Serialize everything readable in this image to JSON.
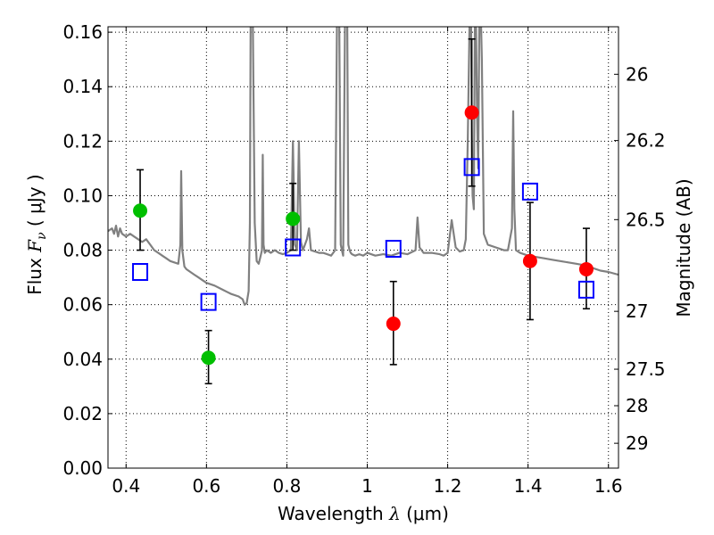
{
  "chart_data": {
    "type": "scatter",
    "title": "",
    "xlabel": {
      "prefix": "Wavelength",
      "symbol": "λ",
      "unit_open": "(",
      "unit": "μm",
      "unit_close": ")"
    },
    "ylabel": {
      "prefix": "Flux",
      "symbol": "F",
      "subscript": "ν",
      "unit_open": "(",
      "unit": "μJy",
      "unit_close": ")"
    },
    "y2label": "Magnitude (AB)",
    "xlim": [
      0.355,
      1.625
    ],
    "ylim": [
      0.0,
      0.162
    ],
    "grid": true,
    "xticks": [
      0.4,
      0.6,
      0.8,
      1.0,
      1.2,
      1.4,
      1.6
    ],
    "xtick_labels": [
      "0.4",
      "0.6",
      "0.8",
      "1",
      "1.2",
      "1.4",
      "1.6"
    ],
    "yticks": [
      0.0,
      0.02,
      0.04,
      0.06,
      0.08,
      0.1,
      0.12,
      0.14,
      0.16
    ],
    "ytick_labels": [
      "0.00",
      "0.02",
      "0.04",
      "0.06",
      "0.08",
      "0.10",
      "0.12",
      "0.14",
      "0.16"
    ],
    "y2ticks": [
      {
        "label": "26",
        "mag": 26.0
      },
      {
        "label": "26.2",
        "mag": 26.2
      },
      {
        "label": "26.5",
        "mag": 26.5
      },
      {
        "label": "27",
        "mag": 27.0
      },
      {
        "label": "27.5",
        "mag": 27.5
      },
      {
        "label": "28",
        "mag": 28.0
      },
      {
        "label": "29",
        "mag": 29.0
      }
    ],
    "series": [
      {
        "kind": "line",
        "color": "#808080",
        "x": [
          0.355,
          0.365,
          0.37,
          0.375,
          0.38,
          0.385,
          0.39,
          0.4,
          0.41,
          0.42,
          0.43,
          0.44,
          0.45,
          0.46,
          0.47,
          0.48,
          0.49,
          0.5,
          0.51,
          0.52,
          0.53,
          0.535,
          0.537,
          0.54,
          0.545,
          0.55,
          0.56,
          0.57,
          0.58,
          0.59,
          0.6,
          0.62,
          0.64,
          0.66,
          0.68,
          0.69,
          0.695,
          0.7,
          0.705,
          0.708,
          0.71,
          0.715,
          0.72,
          0.725,
          0.73,
          0.735,
          0.738,
          0.74,
          0.742,
          0.745,
          0.75,
          0.76,
          0.77,
          0.78,
          0.79,
          0.8,
          0.81,
          0.815,
          0.82,
          0.825,
          0.83,
          0.835,
          0.84,
          0.85,
          0.855,
          0.86,
          0.87,
          0.88,
          0.89,
          0.9,
          0.91,
          0.92,
          0.925,
          0.93,
          0.934,
          0.937,
          0.94,
          0.945,
          0.95,
          0.953,
          0.956,
          0.959,
          0.962,
          0.97,
          0.98,
          0.99,
          1.0,
          1.02,
          1.04,
          1.06,
          1.08,
          1.1,
          1.12,
          1.125,
          1.13,
          1.14,
          1.16,
          1.18,
          1.19,
          1.2,
          1.21,
          1.22,
          1.23,
          1.24,
          1.245,
          1.25,
          1.255,
          1.258,
          1.26,
          1.262,
          1.265,
          1.268,
          1.27,
          1.273,
          1.276,
          1.279,
          1.282,
          1.285,
          1.29,
          1.3,
          1.32,
          1.34,
          1.35,
          1.36,
          1.363,
          1.366,
          1.37,
          1.38,
          1.4,
          1.42,
          1.44,
          1.46,
          1.48,
          1.5,
          1.52,
          1.54,
          1.56,
          1.58,
          1.6,
          1.625
        ],
        "y": [
          0.087,
          0.088,
          0.086,
          0.089,
          0.085,
          0.088,
          0.086,
          0.085,
          0.086,
          0.085,
          0.084,
          0.083,
          0.084,
          0.082,
          0.08,
          0.079,
          0.078,
          0.077,
          0.076,
          0.0755,
          0.075,
          0.082,
          0.109,
          0.08,
          0.074,
          0.073,
          0.072,
          0.071,
          0.07,
          0.069,
          0.068,
          0.067,
          0.0655,
          0.064,
          0.063,
          0.062,
          0.06,
          0.0605,
          0.065,
          0.09,
          0.17,
          0.17,
          0.09,
          0.076,
          0.075,
          0.078,
          0.08,
          0.115,
          0.082,
          0.079,
          0.08,
          0.079,
          0.08,
          0.079,
          0.0785,
          0.079,
          0.08,
          0.12,
          0.082,
          0.08,
          0.12,
          0.083,
          0.08,
          0.084,
          0.088,
          0.08,
          0.0795,
          0.079,
          0.079,
          0.0785,
          0.078,
          0.08,
          0.17,
          0.17,
          0.082,
          0.08,
          0.078,
          0.17,
          0.17,
          0.082,
          0.08,
          0.079,
          0.0785,
          0.078,
          0.0785,
          0.078,
          0.079,
          0.078,
          0.0785,
          0.078,
          0.079,
          0.0785,
          0.08,
          0.092,
          0.081,
          0.079,
          0.079,
          0.0785,
          0.078,
          0.079,
          0.091,
          0.081,
          0.0795,
          0.08,
          0.084,
          0.12,
          0.17,
          0.17,
          0.125,
          0.1,
          0.095,
          0.17,
          0.17,
          0.13,
          0.11,
          0.17,
          0.17,
          0.15,
          0.086,
          0.082,
          0.081,
          0.08,
          0.08,
          0.088,
          0.131,
          0.095,
          0.08,
          0.079,
          0.078,
          0.0775,
          0.077,
          0.0765,
          0.076,
          0.0755,
          0.075,
          0.0745,
          0.0735,
          0.0725,
          0.072,
          0.071
        ]
      },
      {
        "kind": "points",
        "marker": "circle",
        "color": "#00bf00",
        "points": [
          {
            "x": 0.435,
            "y": 0.0945,
            "err_low": 0.08,
            "err_high": 0.1095
          },
          {
            "x": 0.605,
            "y": 0.0405,
            "err_low": 0.031,
            "err_high": 0.0505
          },
          {
            "x": 0.815,
            "y": 0.0915,
            "err_low": 0.08,
            "err_high": 0.1045
          }
        ]
      },
      {
        "kind": "points",
        "marker": "circle",
        "color": "#ff0000",
        "points": [
          {
            "x": 1.065,
            "y": 0.053,
            "err_low": 0.038,
            "err_high": 0.0685
          },
          {
            "x": 1.26,
            "y": 0.1305,
            "err_low": 0.1035,
            "err_high": 0.1575
          },
          {
            "x": 1.405,
            "y": 0.076,
            "err_low": 0.0545,
            "err_high": 0.0975
          },
          {
            "x": 1.545,
            "y": 0.073,
            "err_low": 0.0585,
            "err_high": 0.088
          }
        ]
      },
      {
        "kind": "points",
        "marker": "square",
        "color": "#0000ff",
        "points": [
          {
            "x": 0.435,
            "y": 0.072
          },
          {
            "x": 0.605,
            "y": 0.061
          },
          {
            "x": 0.815,
            "y": 0.081
          },
          {
            "x": 1.065,
            "y": 0.0805
          },
          {
            "x": 1.26,
            "y": 0.1105
          },
          {
            "x": 1.405,
            "y": 0.1015
          },
          {
            "x": 1.545,
            "y": 0.0655
          }
        ]
      }
    ]
  }
}
